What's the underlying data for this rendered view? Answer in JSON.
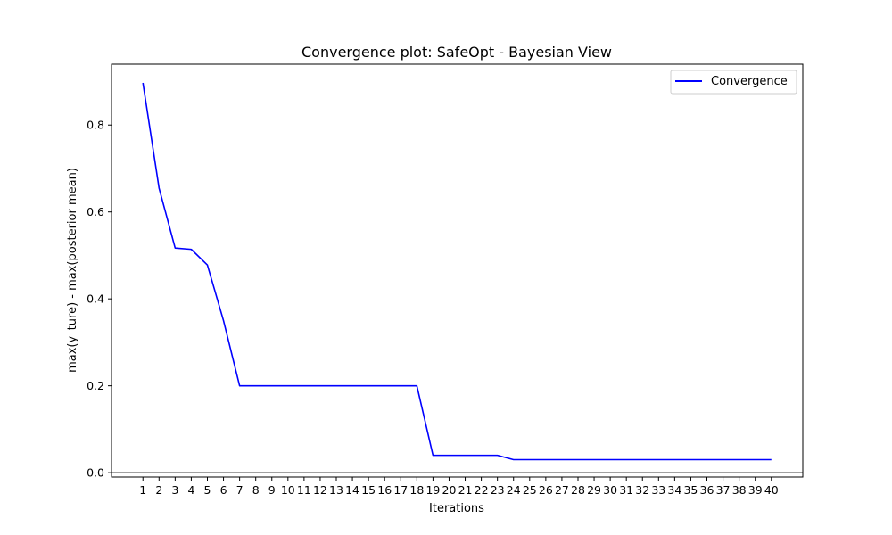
{
  "chart_data": {
    "type": "line",
    "title": "Convergence plot: SafeOpt - Bayesian View",
    "xlabel": "Iterations",
    "ylabel": "max(y_ture) - max(posterior mean)",
    "xlim": [
      -0.95,
      41.95
    ],
    "ylim": [
      -0.01,
      0.94
    ],
    "x_ticks": [
      1,
      2,
      3,
      4,
      5,
      6,
      7,
      8,
      9,
      10,
      11,
      12,
      13,
      14,
      15,
      16,
      17,
      18,
      19,
      20,
      21,
      22,
      23,
      24,
      25,
      26,
      27,
      28,
      29,
      30,
      31,
      32,
      33,
      34,
      35,
      36,
      37,
      38,
      39,
      40
    ],
    "y_ticks": [
      0.0,
      0.2,
      0.4,
      0.6,
      0.8
    ],
    "y_tick_labels": [
      "0.0",
      "0.2",
      "0.4",
      "0.6",
      "0.8"
    ],
    "reference_line_y": 0,
    "grid": false,
    "legend_position": "top-right",
    "series": [
      {
        "name": "Convergence",
        "color": "#0000ff",
        "x": [
          1,
          2,
          3,
          4,
          5,
          6,
          7,
          8,
          9,
          10,
          11,
          12,
          13,
          14,
          15,
          16,
          17,
          18,
          19,
          20,
          21,
          22,
          23,
          24,
          25,
          26,
          27,
          28,
          29,
          30,
          31,
          32,
          33,
          34,
          35,
          36,
          37,
          38,
          39,
          40
        ],
        "y": [
          0.897,
          0.655,
          0.517,
          0.514,
          0.478,
          0.35,
          0.2,
          0.2,
          0.2,
          0.2,
          0.2,
          0.2,
          0.2,
          0.2,
          0.2,
          0.2,
          0.2,
          0.2,
          0.04,
          0.04,
          0.04,
          0.04,
          0.04,
          0.03,
          0.03,
          0.03,
          0.03,
          0.03,
          0.03,
          0.03,
          0.03,
          0.03,
          0.03,
          0.03,
          0.03,
          0.03,
          0.03,
          0.03,
          0.03,
          0.03
        ]
      }
    ]
  }
}
